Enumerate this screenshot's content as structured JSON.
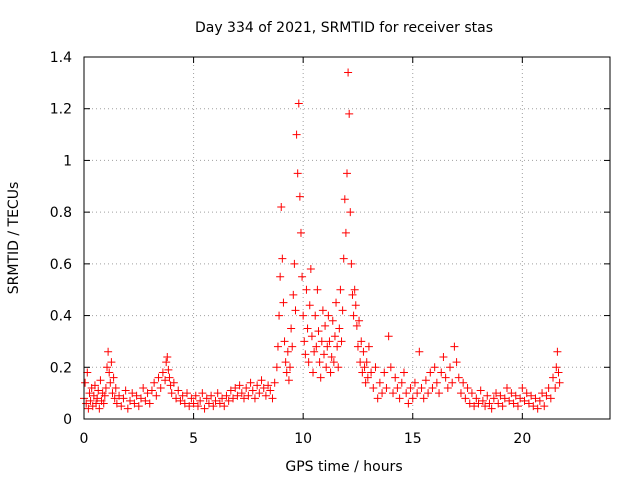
{
  "chart_data": {
    "type": "scatter",
    "title": "Day 334 of 2021, SRMTID for receiver stas",
    "xlabel": "GPS time / hours",
    "ylabel": "SRMTID / TECUs",
    "xlim": [
      0,
      24
    ],
    "ylim": [
      0,
      1.4
    ],
    "xticks": [
      0,
      5,
      10,
      15,
      20
    ],
    "yticks": [
      0,
      0.2,
      0.4,
      0.6,
      0.8,
      1,
      1.2,
      1.4
    ],
    "xtick_labels": [
      "0",
      "5",
      "10",
      "15",
      "20"
    ],
    "ytick_labels": [
      "0",
      "0.2",
      "0.4",
      "0.6",
      "0.8",
      "1",
      "1.2",
      "1.4"
    ],
    "grid": true,
    "marker": "+",
    "color": "#ff0000",
    "series": [
      {
        "name": "SRMTID",
        "points": [
          [
            0.0,
            0.08
          ],
          [
            0.05,
            0.14
          ],
          [
            0.1,
            0.06
          ],
          [
            0.15,
            0.18
          ],
          [
            0.2,
            0.04
          ],
          [
            0.25,
            0.1
          ],
          [
            0.3,
            0.07
          ],
          [
            0.35,
            0.12
          ],
          [
            0.4,
            0.05
          ],
          [
            0.45,
            0.09
          ],
          [
            0.5,
            0.13
          ],
          [
            0.55,
            0.06
          ],
          [
            0.6,
            0.08
          ],
          [
            0.65,
            0.11
          ],
          [
            0.7,
            0.04
          ],
          [
            0.75,
            0.15
          ],
          [
            0.8,
            0.07
          ],
          [
            0.85,
            0.1
          ],
          [
            0.9,
            0.06
          ],
          [
            0.95,
            0.09
          ],
          [
            1.0,
            0.12
          ],
          [
            1.05,
            0.2
          ],
          [
            1.1,
            0.26
          ],
          [
            1.15,
            0.18
          ],
          [
            1.2,
            0.14
          ],
          [
            1.25,
            0.22
          ],
          [
            1.3,
            0.1
          ],
          [
            1.35,
            0.16
          ],
          [
            1.4,
            0.08
          ],
          [
            1.45,
            0.12
          ],
          [
            1.5,
            0.06
          ],
          [
            1.6,
            0.09
          ],
          [
            1.7,
            0.05
          ],
          [
            1.8,
            0.08
          ],
          [
            1.9,
            0.11
          ],
          [
            2.0,
            0.04
          ],
          [
            2.1,
            0.07
          ],
          [
            2.2,
            0.1
          ],
          [
            2.3,
            0.06
          ],
          [
            2.4,
            0.09
          ],
          [
            2.5,
            0.05
          ],
          [
            2.6,
            0.08
          ],
          [
            2.7,
            0.12
          ],
          [
            2.8,
            0.07
          ],
          [
            2.9,
            0.1
          ],
          [
            3.0,
            0.06
          ],
          [
            3.1,
            0.11
          ],
          [
            3.2,
            0.14
          ],
          [
            3.3,
            0.09
          ],
          [
            3.4,
            0.16
          ],
          [
            3.5,
            0.12
          ],
          [
            3.6,
            0.18
          ],
          [
            3.7,
            0.15
          ],
          [
            3.75,
            0.22
          ],
          [
            3.8,
            0.24
          ],
          [
            3.85,
            0.19
          ],
          [
            3.9,
            0.16
          ],
          [
            3.95,
            0.13
          ],
          [
            4.0,
            0.1
          ],
          [
            4.1,
            0.14
          ],
          [
            4.2,
            0.08
          ],
          [
            4.3,
            0.11
          ],
          [
            4.4,
            0.07
          ],
          [
            4.5,
            0.09
          ],
          [
            4.6,
            0.06
          ],
          [
            4.7,
            0.1
          ],
          [
            4.8,
            0.05
          ],
          [
            4.9,
            0.08
          ],
          [
            5.0,
            0.06
          ],
          [
            5.1,
            0.09
          ],
          [
            5.2,
            0.05
          ],
          [
            5.3,
            0.07
          ],
          [
            5.4,
            0.1
          ],
          [
            5.5,
            0.04
          ],
          [
            5.6,
            0.08
          ],
          [
            5.7,
            0.06
          ],
          [
            5.8,
            0.09
          ],
          [
            5.9,
            0.05
          ],
          [
            6.0,
            0.07
          ],
          [
            6.1,
            0.1
          ],
          [
            6.2,
            0.06
          ],
          [
            6.3,
            0.08
          ],
          [
            6.4,
            0.05
          ],
          [
            6.5,
            0.09
          ],
          [
            6.6,
            0.07
          ],
          [
            6.7,
            0.11
          ],
          [
            6.8,
            0.08
          ],
          [
            6.9,
            0.12
          ],
          [
            7.0,
            0.09
          ],
          [
            7.1,
            0.13
          ],
          [
            7.2,
            0.1
          ],
          [
            7.3,
            0.08
          ],
          [
            7.4,
            0.12
          ],
          [
            7.5,
            0.09
          ],
          [
            7.6,
            0.14
          ],
          [
            7.7,
            0.11
          ],
          [
            7.8,
            0.08
          ],
          [
            7.9,
            0.13
          ],
          [
            8.0,
            0.1
          ],
          [
            8.1,
            0.15
          ],
          [
            8.2,
            0.12
          ],
          [
            8.3,
            0.09
          ],
          [
            8.4,
            0.13
          ],
          [
            8.5,
            0.11
          ],
          [
            8.6,
            0.08
          ],
          [
            8.7,
            0.14
          ],
          [
            8.8,
            0.2
          ],
          [
            8.85,
            0.28
          ],
          [
            8.9,
            0.4
          ],
          [
            8.95,
            0.55
          ],
          [
            9.0,
            0.82
          ],
          [
            9.05,
            0.62
          ],
          [
            9.1,
            0.45
          ],
          [
            9.15,
            0.3
          ],
          [
            9.2,
            0.22
          ],
          [
            9.25,
            0.18
          ],
          [
            9.3,
            0.26
          ],
          [
            9.35,
            0.15
          ],
          [
            9.4,
            0.2
          ],
          [
            9.45,
            0.35
          ],
          [
            9.5,
            0.28
          ],
          [
            9.55,
            0.48
          ],
          [
            9.6,
            0.6
          ],
          [
            9.65,
            0.42
          ],
          [
            9.7,
            1.1
          ],
          [
            9.75,
            0.95
          ],
          [
            9.8,
            1.22
          ],
          [
            9.85,
            0.86
          ],
          [
            9.9,
            0.72
          ],
          [
            9.95,
            0.55
          ],
          [
            10.0,
            0.4
          ],
          [
            10.05,
            0.3
          ],
          [
            10.1,
            0.25
          ],
          [
            10.15,
            0.5
          ],
          [
            10.2,
            0.35
          ],
          [
            10.25,
            0.22
          ],
          [
            10.3,
            0.44
          ],
          [
            10.35,
            0.58
          ],
          [
            10.4,
            0.32
          ],
          [
            10.45,
            0.18
          ],
          [
            10.5,
            0.26
          ],
          [
            10.55,
            0.4
          ],
          [
            10.6,
            0.28
          ],
          [
            10.65,
            0.5
          ],
          [
            10.7,
            0.34
          ],
          [
            10.75,
            0.22
          ],
          [
            10.8,
            0.16
          ],
          [
            10.85,
            0.3
          ],
          [
            10.9,
            0.42
          ],
          [
            10.95,
            0.25
          ],
          [
            11.0,
            0.36
          ],
          [
            11.05,
            0.2
          ],
          [
            11.1,
            0.28
          ],
          [
            11.15,
            0.4
          ],
          [
            11.2,
            0.3
          ],
          [
            11.25,
            0.18
          ],
          [
            11.3,
            0.24
          ],
          [
            11.35,
            0.38
          ],
          [
            11.4,
            0.22
          ],
          [
            11.45,
            0.32
          ],
          [
            11.5,
            0.45
          ],
          [
            11.55,
            0.28
          ],
          [
            11.6,
            0.2
          ],
          [
            11.65,
            0.35
          ],
          [
            11.7,
            0.5
          ],
          [
            11.75,
            0.3
          ],
          [
            11.8,
            0.42
          ],
          [
            11.85,
            0.62
          ],
          [
            11.9,
            0.85
          ],
          [
            11.95,
            0.72
          ],
          [
            12.0,
            0.95
          ],
          [
            12.05,
            1.34
          ],
          [
            12.1,
            1.18
          ],
          [
            12.15,
            0.8
          ],
          [
            12.2,
            0.6
          ],
          [
            12.25,
            0.48
          ],
          [
            12.3,
            0.4
          ],
          [
            12.35,
            0.5
          ],
          [
            12.4,
            0.44
          ],
          [
            12.45,
            0.36
          ],
          [
            12.5,
            0.28
          ],
          [
            12.55,
            0.38
          ],
          [
            12.6,
            0.22
          ],
          [
            12.65,
            0.3
          ],
          [
            12.7,
            0.18
          ],
          [
            12.75,
            0.26
          ],
          [
            12.8,
            0.2
          ],
          [
            12.85,
            0.14
          ],
          [
            12.9,
            0.22
          ],
          [
            12.95,
            0.16
          ],
          [
            13.0,
            0.28
          ],
          [
            13.1,
            0.18
          ],
          [
            13.2,
            0.12
          ],
          [
            13.3,
            0.2
          ],
          [
            13.4,
            0.08
          ],
          [
            13.5,
            0.14
          ],
          [
            13.6,
            0.1
          ],
          [
            13.7,
            0.18
          ],
          [
            13.8,
            0.12
          ],
          [
            13.9,
            0.32
          ],
          [
            14.0,
            0.2
          ],
          [
            14.1,
            0.1
          ],
          [
            14.2,
            0.16
          ],
          [
            14.3,
            0.12
          ],
          [
            14.4,
            0.08
          ],
          [
            14.5,
            0.14
          ],
          [
            14.6,
            0.18
          ],
          [
            14.7,
            0.1
          ],
          [
            14.8,
            0.06
          ],
          [
            14.9,
            0.12
          ],
          [
            15.0,
            0.08
          ],
          [
            15.1,
            0.14
          ],
          [
            15.2,
            0.1
          ],
          [
            15.3,
            0.26
          ],
          [
            15.4,
            0.12
          ],
          [
            15.5,
            0.08
          ],
          [
            15.6,
            0.15
          ],
          [
            15.7,
            0.1
          ],
          [
            15.8,
            0.18
          ],
          [
            15.9,
            0.12
          ],
          [
            16.0,
            0.2
          ],
          [
            16.1,
            0.14
          ],
          [
            16.2,
            0.1
          ],
          [
            16.3,
            0.18
          ],
          [
            16.4,
            0.24
          ],
          [
            16.5,
            0.16
          ],
          [
            16.6,
            0.12
          ],
          [
            16.7,
            0.2
          ],
          [
            16.8,
            0.14
          ],
          [
            16.9,
            0.28
          ],
          [
            17.0,
            0.22
          ],
          [
            17.1,
            0.16
          ],
          [
            17.2,
            0.1
          ],
          [
            17.3,
            0.14
          ],
          [
            17.4,
            0.08
          ],
          [
            17.5,
            0.12
          ],
          [
            17.6,
            0.06
          ],
          [
            17.7,
            0.1
          ],
          [
            17.8,
            0.05
          ],
          [
            17.9,
            0.08
          ],
          [
            18.0,
            0.06
          ],
          [
            18.1,
            0.11
          ],
          [
            18.2,
            0.07
          ],
          [
            18.3,
            0.05
          ],
          [
            18.4,
            0.09
          ],
          [
            18.5,
            0.06
          ],
          [
            18.6,
            0.04
          ],
          [
            18.7,
            0.08
          ],
          [
            18.8,
            0.1
          ],
          [
            18.9,
            0.06
          ],
          [
            19.0,
            0.09
          ],
          [
            19.1,
            0.05
          ],
          [
            19.2,
            0.08
          ],
          [
            19.3,
            0.12
          ],
          [
            19.4,
            0.07
          ],
          [
            19.5,
            0.1
          ],
          [
            19.6,
            0.06
          ],
          [
            19.7,
            0.09
          ],
          [
            19.8,
            0.05
          ],
          [
            19.9,
            0.08
          ],
          [
            20.0,
            0.12
          ],
          [
            20.1,
            0.07
          ],
          [
            20.2,
            0.1
          ],
          [
            20.3,
            0.06
          ],
          [
            20.4,
            0.09
          ],
          [
            20.5,
            0.05
          ],
          [
            20.6,
            0.08
          ],
          [
            20.7,
            0.04
          ],
          [
            20.8,
            0.07
          ],
          [
            20.9,
            0.1
          ],
          [
            21.0,
            0.05
          ],
          [
            21.1,
            0.09
          ],
          [
            21.2,
            0.12
          ],
          [
            21.3,
            0.08
          ],
          [
            21.4,
            0.16
          ],
          [
            21.5,
            0.12
          ],
          [
            21.55,
            0.2
          ],
          [
            21.6,
            0.26
          ],
          [
            21.65,
            0.18
          ],
          [
            21.7,
            0.14
          ]
        ]
      }
    ]
  }
}
